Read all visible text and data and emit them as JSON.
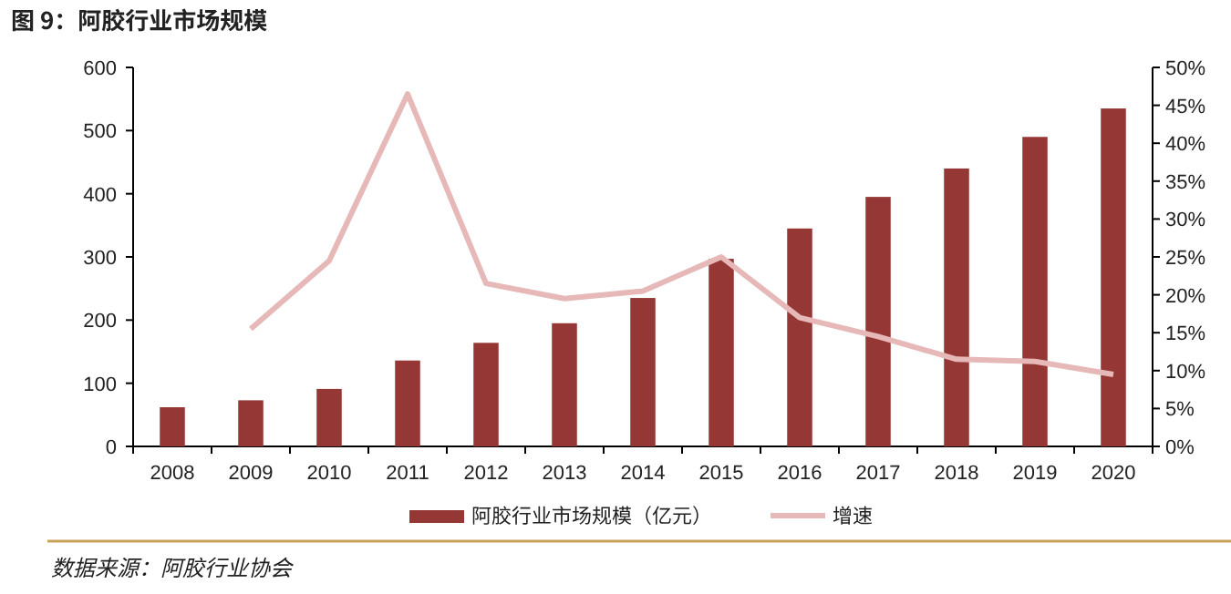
{
  "chart_data": {
    "type": "bar",
    "title": "图 9：阿胶行业市场规模",
    "categories": [
      "2008",
      "2009",
      "2010",
      "2011",
      "2012",
      "2013",
      "2014",
      "2015",
      "2016",
      "2017",
      "2018",
      "2019",
      "2020"
    ],
    "series": [
      {
        "name": "阿胶行业市场规模（亿元）",
        "color": "#953735",
        "values": [
          62,
          73,
          91,
          136,
          164,
          195,
          235,
          297,
          345,
          395,
          440,
          490,
          535
        ]
      },
      {
        "name": "增速",
        "type": "line",
        "axis": "y2",
        "color": "#e6b9b8",
        "values": [
          null,
          15.5,
          24.5,
          46.5,
          21.5,
          19.5,
          20.5,
          25,
          17,
          14.5,
          11.5,
          11.2,
          9.5
        ]
      }
    ],
    "ylim": [
      0,
      600
    ],
    "yticks": [
      0,
      100,
      200,
      300,
      400,
      500,
      600
    ],
    "y2lim": [
      0,
      50
    ],
    "y2ticks": [
      {
        "value": 0,
        "label": "0%"
      },
      {
        "value": 5,
        "label": "5%"
      },
      {
        "value": 10,
        "label": "10%"
      },
      {
        "value": 15,
        "label": "15%"
      },
      {
        "value": 20,
        "label": "20%"
      },
      {
        "value": 25,
        "label": "25%"
      },
      {
        "value": 30,
        "label": "30%"
      },
      {
        "value": 35,
        "label": "35%"
      },
      {
        "value": 40,
        "label": "40%"
      },
      {
        "value": 45,
        "label": "45%"
      },
      {
        "value": 50,
        "label": "50%"
      }
    ],
    "grid": false,
    "legend": "bottom",
    "annotations": [
      "数据来源：阿胶行业协会"
    ]
  }
}
